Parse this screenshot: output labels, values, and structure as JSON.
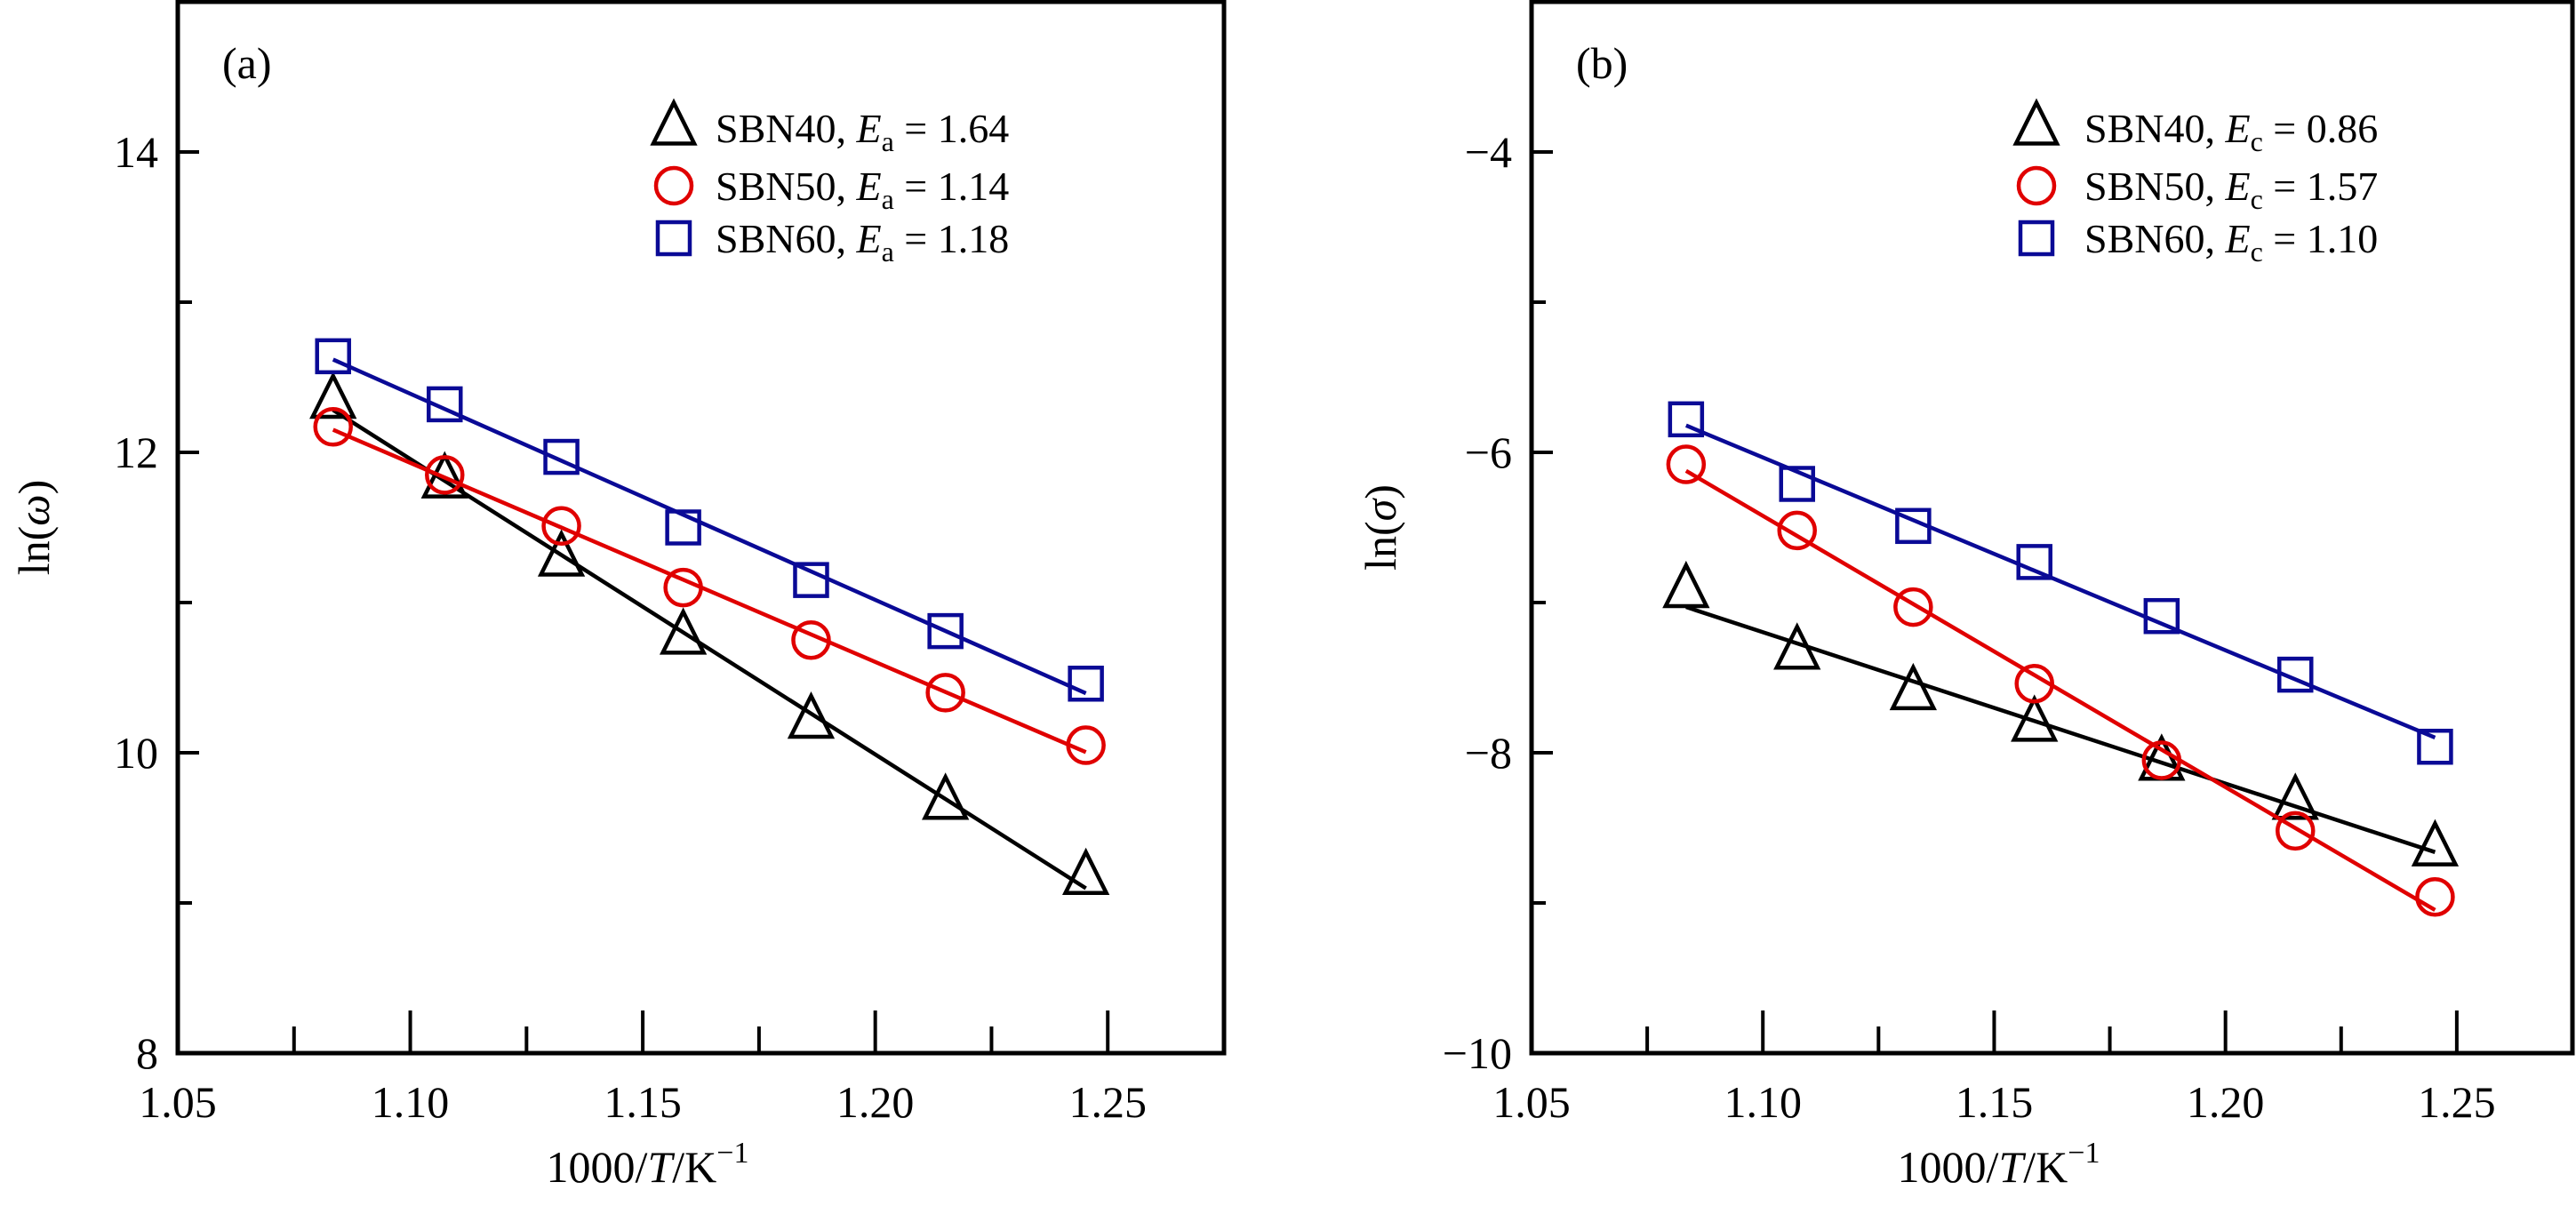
{
  "chart_data": [
    {
      "type": "scatter",
      "panel_label": "(a)",
      "xlabel": "1000/T/K",
      "xlabel_parts": {
        "pre": "1000/",
        "italic": "T",
        "post": "/K",
        "sup": "−1"
      },
      "ylabel": "ln(ω)",
      "ylabel_parts": {
        "pre": "ln(",
        "italic": "ω",
        "post": ")"
      },
      "xlim": [
        1.05,
        1.275
      ],
      "ylim": [
        8,
        15
      ],
      "xticks": [
        1.05,
        1.1,
        1.15,
        1.2,
        1.25
      ],
      "xtick_labels": [
        "1.05",
        "1.10",
        "1.15",
        "1.20",
        "1.25"
      ],
      "yticks": [
        8,
        10,
        12,
        14
      ],
      "ytick_labels": [
        "8",
        "10",
        "12",
        "14"
      ],
      "legend_position": "top-right",
      "x": [
        1.0834,
        1.1074,
        1.1325,
        1.1587,
        1.1862,
        1.2151,
        1.2453
      ],
      "series": [
        {
          "name": "SBN40",
          "marker": "triangle",
          "color": "#000000",
          "symbol": "E",
          "sub": "a",
          "value": "1.64",
          "values": [
            12.34,
            11.81,
            11.29,
            10.77,
            10.21,
            9.67,
            9.17
          ]
        },
        {
          "name": "SBN50",
          "marker": "circle",
          "color": "#e00000",
          "symbol": "E",
          "sub": "a",
          "value": "1.14",
          "values": [
            12.17,
            11.85,
            11.51,
            11.1,
            10.75,
            10.4,
            10.05
          ]
        },
        {
          "name": "SBN60",
          "marker": "square",
          "color": "#0a0a96",
          "symbol": "E",
          "sub": "a",
          "value": "1.18",
          "values": [
            12.64,
            12.32,
            11.97,
            11.5,
            11.15,
            10.81,
            10.46
          ]
        }
      ]
    },
    {
      "type": "scatter",
      "panel_label": "(b)",
      "xlabel": "1000/T/K",
      "xlabel_parts": {
        "pre": "1000/",
        "italic": "T",
        "post": "/K",
        "sup": "−1"
      },
      "ylabel": "ln(σ)",
      "ylabel_parts": {
        "pre": "ln(",
        "italic": "σ",
        "post": ")"
      },
      "xlim": [
        1.05,
        1.275
      ],
      "ylim": [
        -10,
        -3
      ],
      "xticks": [
        1.05,
        1.1,
        1.15,
        1.2,
        1.25
      ],
      "xtick_labels": [
        "1.05",
        "1.10",
        "1.15",
        "1.20",
        "1.25"
      ],
      "yticks": [
        -10,
        -8,
        -6,
        -4
      ],
      "ytick_labels": [
        "−10",
        "−8",
        "−6",
        "−4"
      ],
      "legend_position": "top-right",
      "x": [
        1.0834,
        1.1074,
        1.1325,
        1.1587,
        1.1862,
        1.2151,
        1.2453
      ],
      "series": [
        {
          "name": "SBN40",
          "marker": "triangle",
          "color": "#000000",
          "symbol": "E",
          "sub": "c",
          "value": "0.86",
          "values": [
            -6.92,
            -7.33,
            -7.6,
            -7.81,
            -8.07,
            -8.33,
            -8.64
          ]
        },
        {
          "name": "SBN50",
          "marker": "circle",
          "color": "#e00000",
          "symbol": "E",
          "sub": "c",
          "value": "1.57",
          "values": [
            -6.08,
            -6.52,
            -7.03,
            -7.54,
            -8.05,
            -8.52,
            -8.96
          ]
        },
        {
          "name": "SBN60",
          "marker": "square",
          "color": "#0a0a96",
          "symbol": "E",
          "sub": "c",
          "value": "1.10",
          "values": [
            -5.78,
            -6.21,
            -6.49,
            -6.73,
            -7.09,
            -7.48,
            -7.96
          ]
        }
      ]
    }
  ]
}
